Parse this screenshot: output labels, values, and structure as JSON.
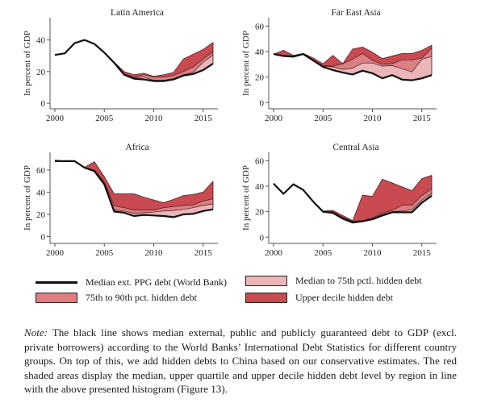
{
  "colors": {
    "median_line": "#111111",
    "band_median_75": "#ebb5b7",
    "band_75_90": "#dc7f83",
    "band_upper_decile": "#c94a50",
    "outline": "#3a1a1a"
  },
  "chart_data": [
    {
      "type": "area",
      "title": "Latin America",
      "ylabel": "In percent of GDP",
      "xlabel": "",
      "x": [
        2000,
        2001,
        2002,
        2003,
        2004,
        2005,
        2006,
        2007,
        2008,
        2009,
        2010,
        2011,
        2012,
        2013,
        2014,
        2015,
        2016
      ],
      "xticks": [
        "2000",
        "2005",
        "2010",
        "2015"
      ],
      "yticks": [
        "0",
        "20",
        "40"
      ],
      "ylim": [
        -2,
        52
      ],
      "series": [
        {
          "name": "Median ext. PPG debt (World Bank)",
          "values": [
            30.5,
            31.5,
            38,
            40,
            37.5,
            32,
            25.5,
            18,
            15.5,
            15,
            14,
            14,
            15,
            17.5,
            18.5,
            21,
            25
          ]
        },
        {
          "name": "Median to 75th pctl. hidden debt",
          "top": [
            30.5,
            31.5,
            38,
            40,
            37.5,
            32,
            25.5,
            18,
            16,
            16.5,
            14.5,
            14.5,
            15.5,
            18,
            19.5,
            26,
            30.5
          ]
        },
        {
          "name": "75th to 90th pct. hidden debt",
          "top": [
            30.5,
            31.5,
            38,
            40,
            37.5,
            32,
            25.5,
            18.5,
            16.5,
            18,
            16.5,
            16.5,
            17.5,
            20,
            23,
            28,
            32.5
          ]
        },
        {
          "name": "Upper decile hidden debt",
          "top": [
            30.5,
            31.5,
            38,
            40,
            37.5,
            32,
            26,
            20,
            18,
            19,
            17,
            18,
            19.5,
            28,
            31,
            34,
            38.5
          ]
        }
      ]
    },
    {
      "type": "area",
      "title": "Far East Asia",
      "ylabel": "In percent of GDP",
      "xlabel": "",
      "x": [
        2000,
        2001,
        2002,
        2003,
        2004,
        2005,
        2006,
        2007,
        2008,
        2009,
        2010,
        2011,
        2012,
        2013,
        2014,
        2015,
        2016
      ],
      "xticks": [
        "2000",
        "2005",
        "2010",
        "2015"
      ],
      "yticks": [
        "0",
        "20",
        "40",
        "60"
      ],
      "ylim": [
        -3,
        64
      ],
      "series": [
        {
          "name": "Median ext. PPG debt (World Bank)",
          "values": [
            38,
            36.5,
            36,
            38,
            33,
            28,
            25.5,
            23.5,
            22,
            25,
            23,
            19,
            21.5,
            18,
            17.5,
            19,
            21.5
          ]
        },
        {
          "name": "Median to 75th pctl. hidden debt",
          "top": [
            38,
            37,
            36.5,
            38,
            33,
            28.5,
            28,
            26,
            27,
            31,
            31,
            28.5,
            29,
            26.5,
            24,
            34,
            36
          ]
        },
        {
          "name": "75th to 90th pct. hidden debt",
          "top": [
            38,
            37,
            36.5,
            38,
            33.5,
            29,
            28.5,
            30.5,
            34,
            38.5,
            33,
            30,
            30.5,
            33.5,
            33.5,
            35,
            42.5
          ]
        },
        {
          "name": "Upper decile hidden debt",
          "top": [
            38,
            41,
            37,
            38.5,
            35,
            30.5,
            37,
            30.5,
            42,
            43.5,
            39.5,
            34.5,
            36.5,
            38.5,
            38.5,
            41,
            45
          ]
        }
      ]
    },
    {
      "type": "area",
      "title": "Africa",
      "ylabel": "In percent of GDP",
      "xlabel": "",
      "x": [
        2000,
        2001,
        2002,
        2003,
        2004,
        2005,
        2006,
        2007,
        2008,
        2009,
        2010,
        2011,
        2012,
        2013,
        2014,
        2015,
        2016
      ],
      "xticks": [
        "2000",
        "2005",
        "2010",
        "2015"
      ],
      "yticks": [
        "0",
        "20",
        "40",
        "60"
      ],
      "ylim": [
        -4,
        73
      ],
      "series": [
        {
          "name": "Median ext. PPG debt (World Bank)",
          "values": [
            68,
            68,
            68,
            62,
            59,
            47,
            22.5,
            21.5,
            18.5,
            19.5,
            19,
            18.5,
            17.5,
            20,
            20.5,
            23,
            24.5
          ]
        },
        {
          "name": "Median to 75th pctl. hidden debt",
          "top": [
            68,
            68,
            68,
            62,
            59.5,
            48,
            24,
            23,
            21,
            21.5,
            22,
            23,
            23.5,
            24.5,
            26,
            28,
            29.5
          ]
        },
        {
          "name": "75th to 90th pct. hidden debt",
          "top": [
            68,
            68,
            68,
            62,
            60,
            49,
            27.5,
            26,
            24,
            24,
            24,
            26,
            27,
            28,
            28.5,
            32,
            34
          ]
        },
        {
          "name": "Upper decile hidden debt",
          "top": [
            69,
            68,
            68,
            62.5,
            67.5,
            54,
            38.5,
            38.5,
            38.5,
            35.5,
            33,
            30.5,
            33.5,
            37,
            38,
            40,
            50
          ]
        }
      ]
    },
    {
      "type": "area",
      "title": "Central Asia",
      "ylabel": "In percent of GDP",
      "xlabel": "",
      "x": [
        2000,
        2001,
        2002,
        2003,
        2004,
        2005,
        2006,
        2007,
        2008,
        2009,
        2010,
        2011,
        2012,
        2013,
        2014,
        2015,
        2016
      ],
      "xticks": [
        "2000",
        "2005",
        "2010",
        "2015"
      ],
      "yticks": [
        "0",
        "20",
        "40",
        "60"
      ],
      "ylim": [
        -3,
        64
      ],
      "series": [
        {
          "name": "Median ext. PPG debt (World Bank)",
          "values": [
            42,
            34,
            41.5,
            37,
            28,
            20,
            19,
            14.5,
            11.5,
            12.5,
            14,
            17,
            19.5,
            19.5,
            19.5,
            27,
            32.5
          ]
        },
        {
          "name": "Median to 75th pctl. hidden debt",
          "top": [
            42,
            34,
            41.5,
            37,
            28,
            20,
            19.5,
            15,
            12,
            13,
            14.5,
            18,
            20,
            20.5,
            21.5,
            29,
            34.5
          ]
        },
        {
          "name": "75th to 90th pct. hidden debt",
          "top": [
            42,
            34,
            41.5,
            37,
            28,
            20,
            20,
            15.5,
            12.5,
            13,
            15,
            19,
            21,
            25,
            25,
            32.5,
            38
          ]
        },
        {
          "name": "Upper decile hidden debt",
          "top": [
            42,
            34,
            41.5,
            37,
            28,
            20.5,
            21,
            17,
            13,
            33,
            32,
            45.5,
            42.5,
            39.5,
            36.5,
            46,
            48.5
          ]
        }
      ]
    }
  ],
  "legend": {
    "items": [
      {
        "label": "Median ext. PPG debt (World Bank)",
        "kind": "line"
      },
      {
        "label": "Median to 75th pctl. hidden debt",
        "kind": "band_median_75"
      },
      {
        "label": "75th to 90th pct. hidden debt",
        "kind": "band_75_90"
      },
      {
        "label": "Upper decile hidden debt",
        "kind": "band_upper_decile"
      }
    ]
  },
  "note": {
    "label": "Note:",
    "text": " The black line shows median external, public and publicly guaranteed debt to GDP (excl. private borrowers) according to the World Banks’ International Debt Statistics for different country groups. On top of this, we add hidden debts to China based on our conservative estimates. The red shaded areas display the median, upper quartile and upper decile hidden debt level by region in line with the above presented histogram (Figure 13)."
  }
}
